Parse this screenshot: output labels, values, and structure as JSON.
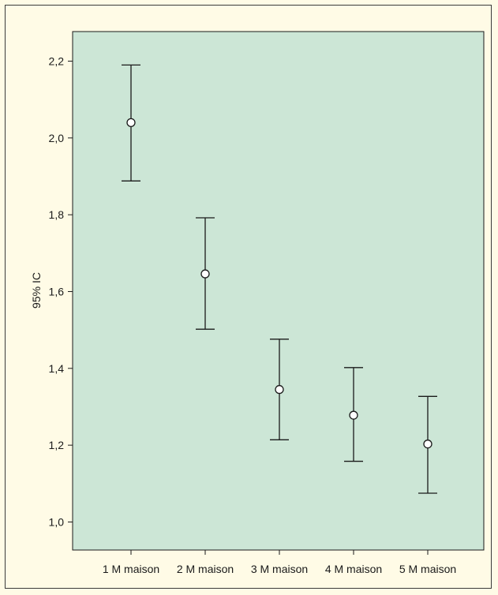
{
  "chart_data": {
    "type": "scatter",
    "title": "",
    "xlabel": "",
    "ylabel": "95% IC",
    "categories": [
      "1 M maison",
      "2 M maison",
      "3 M maison",
      "4 M maison",
      "5 M maison"
    ],
    "series": [
      {
        "values": [
          2.04,
          1.646,
          1.345,
          1.278,
          1.203
        ],
        "lower": [
          1.888,
          1.502,
          1.214,
          1.158,
          1.075
        ],
        "upper": [
          2.19,
          1.792,
          1.476,
          1.402,
          1.327
        ]
      }
    ],
    "yticks": [
      "1,0",
      "1,2",
      "1,4",
      "1,6",
      "1,8",
      "2,0",
      "2,2"
    ],
    "ylim": [
      0.927,
      2.277
    ],
    "grid": false,
    "legend": "none",
    "colors": {
      "plot_background": "#cce6d6",
      "page_background": "#fffbe6",
      "marker_fill": "#ffffff",
      "line": "#1a1a1a"
    }
  }
}
